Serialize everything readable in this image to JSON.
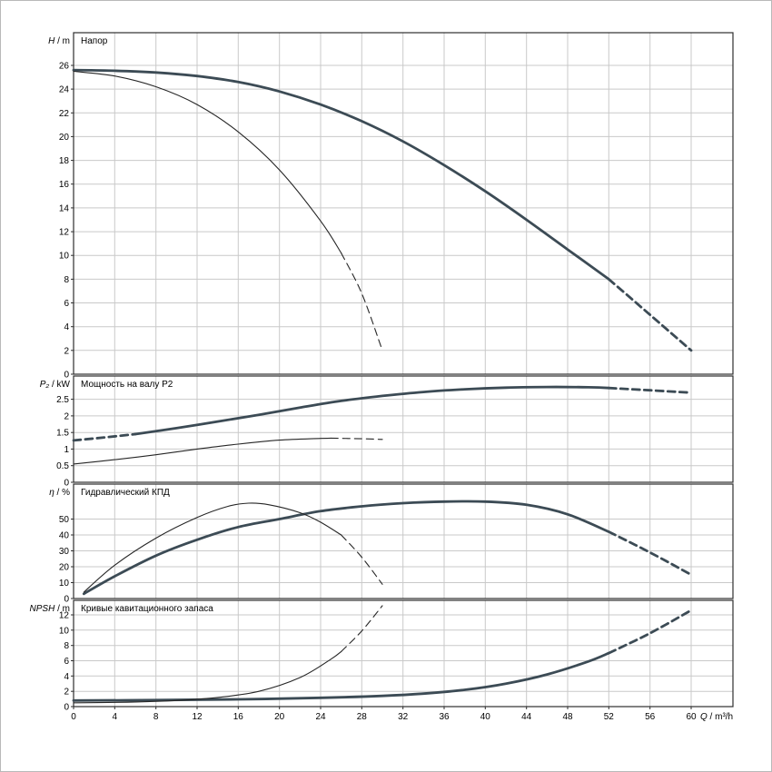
{
  "meta": {
    "bg": "#ffffff",
    "grid_color": "#c9c9c9",
    "frame_color": "#2e2e2e"
  },
  "chart_data": {
    "type": "line",
    "x_axis": {
      "symbol": "Q",
      "label_rest": " / m³/h",
      "max": 60,
      "ticks": [
        0,
        4,
        8,
        12,
        16,
        20,
        24,
        28,
        32,
        36,
        40,
        44,
        48,
        52,
        56,
        60
      ],
      "tick_labels": [
        "0",
        "4",
        "8",
        "12",
        "16",
        "20",
        "24",
        "28",
        "32",
        "36",
        "40",
        "44",
        "48",
        "52",
        "56",
        "60"
      ]
    },
    "series_style": {
      "thick": {
        "color": "#3c4b55",
        "width": 2.8
      },
      "thin": {
        "color": "#262626",
        "width": 1.1
      }
    },
    "panels": [
      {
        "title": "Напор",
        "y_symbol": "H",
        "y_label_rest": " / m",
        "y_ticks": [
          0,
          2,
          4,
          6,
          8,
          10,
          12,
          14,
          16,
          18,
          20,
          22,
          24,
          26
        ],
        "y_tick_labels": [
          "0",
          "2",
          "4",
          "6",
          "8",
          "10",
          "12",
          "14",
          "16",
          "18",
          "20",
          "22",
          "24",
          "26"
        ],
        "series": [
          {
            "name": "head-pump-1",
            "style": "thick",
            "segments": [
              {
                "line": "solid",
                "points": [
                  [
                    0,
                    25.6
                  ],
                  [
                    4,
                    25.55
                  ],
                  [
                    8,
                    25.4
                  ],
                  [
                    12,
                    25.1
                  ],
                  [
                    16,
                    24.6
                  ],
                  [
                    20,
                    23.8
                  ],
                  [
                    24,
                    22.7
                  ],
                  [
                    28,
                    21.3
                  ],
                  [
                    32,
                    19.6
                  ],
                  [
                    36,
                    17.6
                  ],
                  [
                    40,
                    15.4
                  ],
                  [
                    44,
                    13.0
                  ],
                  [
                    48,
                    10.5
                  ],
                  [
                    52,
                    8.0
                  ]
                ]
              },
              {
                "line": "dash",
                "points": [
                  [
                    52,
                    8.0
                  ],
                  [
                    56,
                    5.0
                  ],
                  [
                    60,
                    2.0
                  ]
                ]
              }
            ]
          },
          {
            "name": "head-pump-2",
            "style": "thin",
            "segments": [
              {
                "line": "solid",
                "points": [
                  [
                    0,
                    25.5
                  ],
                  [
                    4,
                    25.1
                  ],
                  [
                    8,
                    24.2
                  ],
                  [
                    12,
                    22.7
                  ],
                  [
                    16,
                    20.4
                  ],
                  [
                    20,
                    17.2
                  ],
                  [
                    24,
                    12.9
                  ],
                  [
                    26,
                    10.2
                  ]
                ]
              },
              {
                "line": "dash",
                "points": [
                  [
                    26,
                    10.2
                  ],
                  [
                    28,
                    6.8
                  ],
                  [
                    30,
                    2.0
                  ]
                ]
              }
            ]
          }
        ]
      },
      {
        "title": "Мощность на валу P2",
        "y_symbol": "P₂",
        "y_label_rest": " / kW",
        "y_ticks": [
          0,
          0.5,
          1,
          1.5,
          2,
          2.5
        ],
        "y_tick_labels": [
          "0",
          "0.5",
          "1",
          "1.5",
          "2",
          "2.5"
        ],
        "series": [
          {
            "name": "power-pump-1",
            "style": "thick",
            "segments": [
              {
                "line": "dash",
                "points": [
                  [
                    0,
                    1.26
                  ],
                  [
                    3,
                    1.35
                  ],
                  [
                    6,
                    1.45
                  ]
                ]
              },
              {
                "line": "solid",
                "points": [
                  [
                    6,
                    1.45
                  ],
                  [
                    10,
                    1.63
                  ],
                  [
                    14,
                    1.83
                  ],
                  [
                    18,
                    2.03
                  ],
                  [
                    22,
                    2.25
                  ],
                  [
                    26,
                    2.45
                  ],
                  [
                    30,
                    2.6
                  ],
                  [
                    34,
                    2.72
                  ],
                  [
                    38,
                    2.8
                  ],
                  [
                    42,
                    2.85
                  ],
                  [
                    46,
                    2.87
                  ],
                  [
                    50,
                    2.86
                  ],
                  [
                    52,
                    2.84
                  ]
                ]
              },
              {
                "line": "dash",
                "points": [
                  [
                    52,
                    2.84
                  ],
                  [
                    56,
                    2.77
                  ],
                  [
                    60,
                    2.7
                  ]
                ]
              }
            ]
          },
          {
            "name": "power-pump-2",
            "style": "thin",
            "segments": [
              {
                "line": "solid",
                "points": [
                  [
                    0,
                    0.55
                  ],
                  [
                    4,
                    0.68
                  ],
                  [
                    8,
                    0.83
                  ],
                  [
                    12,
                    1.0
                  ],
                  [
                    16,
                    1.15
                  ],
                  [
                    20,
                    1.27
                  ],
                  [
                    24,
                    1.32
                  ],
                  [
                    25,
                    1.33
                  ]
                ]
              },
              {
                "line": "dash",
                "points": [
                  [
                    25,
                    1.33
                  ],
                  [
                    28,
                    1.31
                  ],
                  [
                    30,
                    1.29
                  ]
                ]
              }
            ]
          }
        ]
      },
      {
        "title": "Гидравлический КПД",
        "y_symbol": "η",
        "y_label_rest": " / %",
        "y_ticks": [
          0,
          10,
          20,
          30,
          40,
          50
        ],
        "y_tick_labels": [
          "0",
          "10",
          "20",
          "30",
          "40",
          "50"
        ],
        "series": [
          {
            "name": "efficiency-pump-1",
            "style": "thick",
            "segments": [
              {
                "line": "solid",
                "points": [
                  [
                    1,
                    3
                  ],
                  [
                    4,
                    14
                  ],
                  [
                    8,
                    27
                  ],
                  [
                    12,
                    37
                  ],
                  [
                    16,
                    45
                  ],
                  [
                    20,
                    50
                  ],
                  [
                    24,
                    55
                  ],
                  [
                    28,
                    58
                  ],
                  [
                    32,
                    60
                  ],
                  [
                    36,
                    61
                  ],
                  [
                    40,
                    61
                  ],
                  [
                    44,
                    59
                  ],
                  [
                    48,
                    53
                  ],
                  [
                    52,
                    42
                  ]
                ]
              },
              {
                "line": "dash",
                "points": [
                  [
                    52,
                    42
                  ],
                  [
                    56,
                    29
                  ],
                  [
                    60,
                    15
                  ]
                ]
              }
            ]
          },
          {
            "name": "efficiency-pump-2",
            "style": "thin",
            "segments": [
              {
                "line": "solid",
                "points": [
                  [
                    1,
                    4
                  ],
                  [
                    4,
                    21
                  ],
                  [
                    8,
                    38
                  ],
                  [
                    12,
                    51
                  ],
                  [
                    15,
                    58
                  ],
                  [
                    17,
                    60
                  ],
                  [
                    19,
                    59
                  ],
                  [
                    22,
                    54
                  ],
                  [
                    24,
                    48
                  ],
                  [
                    26,
                    40
                  ]
                ]
              },
              {
                "line": "dash",
                "points": [
                  [
                    26,
                    40
                  ],
                  [
                    28,
                    26
                  ],
                  [
                    30,
                    9
                  ]
                ]
              }
            ]
          }
        ]
      },
      {
        "title": "Кривые кавитационного запаса",
        "y_symbol": "NPSH",
        "y_label_rest": " / m",
        "y_ticks": [
          0,
          2,
          4,
          6,
          8,
          10,
          12
        ],
        "y_tick_labels": [
          "0",
          "2",
          "4",
          "6",
          "8",
          "10",
          "12"
        ],
        "series": [
          {
            "name": "npsh-pump-1",
            "style": "thick",
            "segments": [
              {
                "line": "solid",
                "points": [
                  [
                    0,
                    0.8
                  ],
                  [
                    8,
                    0.85
                  ],
                  [
                    16,
                    0.95
                  ],
                  [
                    24,
                    1.15
                  ],
                  [
                    30,
                    1.4
                  ],
                  [
                    34,
                    1.7
                  ],
                  [
                    38,
                    2.2
                  ],
                  [
                    42,
                    3.0
                  ],
                  [
                    46,
                    4.2
                  ],
                  [
                    50,
                    5.9
                  ],
                  [
                    52,
                    7.0
                  ]
                ]
              },
              {
                "line": "dash",
                "points": [
                  [
                    52,
                    7.0
                  ],
                  [
                    56,
                    9.6
                  ],
                  [
                    60,
                    12.6
                  ]
                ]
              }
            ]
          },
          {
            "name": "npsh-pump-2",
            "style": "thin",
            "segments": [
              {
                "line": "solid",
                "points": [
                  [
                    0,
                    0.5
                  ],
                  [
                    6,
                    0.6
                  ],
                  [
                    10,
                    0.8
                  ],
                  [
                    14,
                    1.2
                  ],
                  [
                    18,
                    2.0
                  ],
                  [
                    22,
                    3.8
                  ],
                  [
                    25,
                    6.2
                  ],
                  [
                    26,
                    7.2
                  ]
                ]
              },
              {
                "line": "dash",
                "points": [
                  [
                    26,
                    7.2
                  ],
                  [
                    28,
                    9.9
                  ],
                  [
                    30,
                    13.2
                  ]
                ]
              }
            ]
          }
        ]
      }
    ]
  }
}
